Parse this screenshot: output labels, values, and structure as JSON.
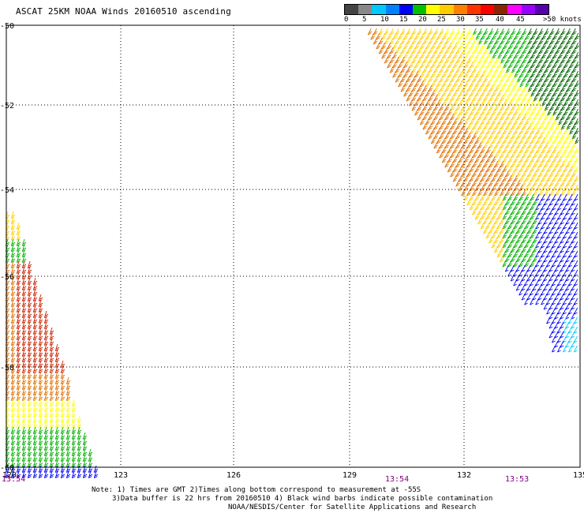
{
  "title": "ASCAT 25KM NOAA Winds 20160510 ascending",
  "colorbar": {
    "colors": [
      "#444444",
      "#888888",
      "#00c8ff",
      "#0080ff",
      "#0000ff",
      "#00c000",
      "#ffff00",
      "#ffcc00",
      "#ff8000",
      "#ff3300",
      "#ff0000",
      "#8b2500",
      "#ff00ff",
      "#9900ff",
      "#5500aa"
    ],
    "labels": [
      "0",
      "5",
      "10",
      "15",
      "20",
      "25",
      "30",
      "35",
      "40",
      "45",
      ">50 knots"
    ]
  },
  "map": {
    "lat_labels": [
      "-50",
      "-52",
      "-54",
      "-56",
      "-58",
      "-60"
    ],
    "lon_labels": [
      "120",
      "123",
      "126",
      "129",
      "132",
      "135"
    ],
    "times": [
      "13:54",
      "13:54",
      "13:53"
    ]
  },
  "notes": {
    "line1": "Note: 1) Times are GMT 2)Times along bottom correspond to measurement at -55S",
    "line2": "3)Data buffer is 22 hrs from 20160510 4) Black wind barbs indicate possible contamination",
    "line3": "NOAA/NESDIS/Center for Satellite Applications and Research"
  }
}
